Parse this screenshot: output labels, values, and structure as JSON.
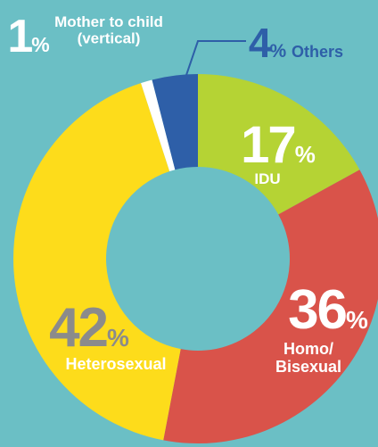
{
  "chart_data": {
    "type": "donut",
    "unit": "%",
    "categories": [
      "IDU",
      "Homo/\nBisexual",
      "Heterosexual",
      "Mother to child\n(vertical)",
      "Others"
    ],
    "values": [
      17,
      36,
      42,
      1,
      4
    ],
    "colors": [
      "#b5d334",
      "#d9534a",
      "#fddc1b",
      "#ffffff",
      "#2e5fa8"
    ]
  }
}
